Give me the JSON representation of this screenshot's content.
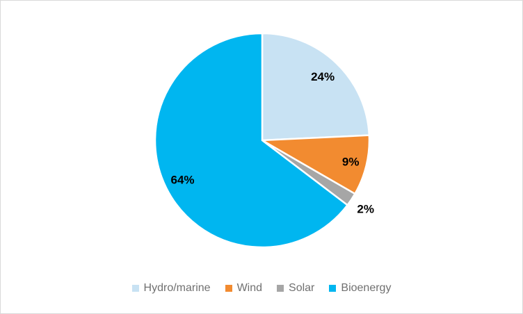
{
  "chart_data": {
    "type": "pie",
    "title": "",
    "categories": [
      "Hydro/marine",
      "Wind",
      "Solar",
      "Bioenergy"
    ],
    "values": [
      24,
      9,
      2,
      64
    ],
    "data_labels": [
      "24%",
      "9%",
      "2%",
      "64%"
    ],
    "colors": [
      "#C8E2F3",
      "#F28B30",
      "#A6A6A6",
      "#00B6F0"
    ],
    "slice_border_color": "#FFFFFF",
    "start_angle_deg": 0,
    "direction": "clockwise",
    "label_color": "#000000",
    "label_radius_fractions": [
      0.82,
      0.85,
      1.16,
      0.83
    ],
    "legend_position": "bottom"
  },
  "legend": {
    "text_color": "#707070",
    "items": [
      {
        "label": "Hydro/marine",
        "color": "#C8E2F3"
      },
      {
        "label": "Wind",
        "color": "#F28B30"
      },
      {
        "label": "Solar",
        "color": "#A6A6A6"
      },
      {
        "label": "Bioenergy",
        "color": "#00B6F0"
      }
    ]
  },
  "frame": {
    "background_color": "#FFFFFF",
    "border_color": "#D9D9D9"
  }
}
